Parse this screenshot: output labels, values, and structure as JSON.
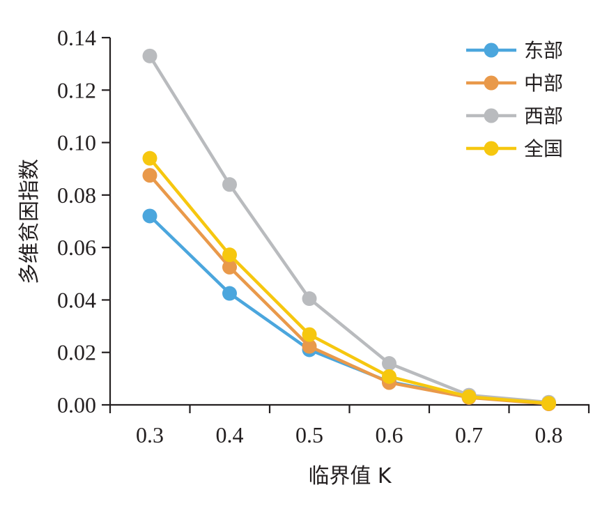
{
  "chart_data": {
    "type": "line",
    "title": "",
    "xlabel": "临界值 K",
    "ylabel": "多维贫困指数",
    "x": [
      0.3,
      0.4,
      0.5,
      0.6,
      0.7,
      0.8
    ],
    "x_tick_labels": [
      "0.3",
      "0.4",
      "0.5",
      "0.6",
      "0.7",
      "0.8"
    ],
    "y_tick_labels": [
      "0.00",
      "0.02",
      "0.04",
      "0.06",
      "0.08",
      "0.10",
      "0.12",
      "0.14"
    ],
    "ylim": [
      0,
      0.14
    ],
    "grid": false,
    "legend_position": "top-right",
    "series": [
      {
        "name": "东部",
        "color": "#4ba6dd",
        "values": [
          0.072,
          0.0425,
          0.021,
          0.0088,
          0.003,
          0.0005
        ]
      },
      {
        "name": "中部",
        "color": "#e9994a",
        "values": [
          0.0875,
          0.0525,
          0.0223,
          0.0085,
          0.0028,
          0.0004
        ]
      },
      {
        "name": "西部",
        "color": "#b9bbbe",
        "values": [
          0.133,
          0.084,
          0.0405,
          0.0158,
          0.0037,
          0.001
        ]
      },
      {
        "name": "全国",
        "color": "#f6c70f",
        "values": [
          0.094,
          0.0572,
          0.0268,
          0.0108,
          0.0031,
          0.0006
        ]
      }
    ]
  }
}
